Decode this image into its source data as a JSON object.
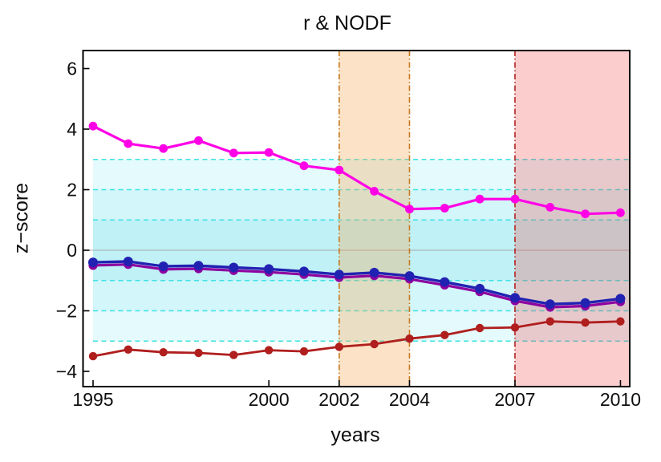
{
  "title": "r & NODF",
  "axes": {
    "ylabel": "z−score",
    "xlabel": "years",
    "y_ticks": [
      {
        "value": 6,
        "label": "6"
      },
      {
        "value": 4,
        "label": "4"
      },
      {
        "value": 2,
        "label": "2"
      },
      {
        "value": 0,
        "label": "0"
      },
      {
        "value": -2,
        "label": "−2"
      },
      {
        "value": -4,
        "label": "−4"
      }
    ],
    "x_ticks": [
      {
        "value": 1995,
        "label": "1995"
      },
      {
        "value": 2000,
        "label": "2000"
      },
      {
        "value": 2002,
        "label": "2002"
      },
      {
        "value": 2004,
        "label": "2004"
      },
      {
        "value": 2007,
        "label": "2007"
      },
      {
        "value": 2010,
        "label": "2010"
      }
    ],
    "x_range": [
      1994.7,
      2010.27
    ],
    "y_range": [
      -4.5,
      6.6
    ]
  },
  "chart_data": {
    "type": "line",
    "title": "r & NODF",
    "xlabel": "years",
    "ylabel": "z-score",
    "grid": false,
    "legend": "none",
    "x": [
      1995,
      1996,
      1997,
      1998,
      1999,
      2000,
      2001,
      2002,
      2003,
      2004,
      2005,
      2006,
      2007,
      2008,
      2009,
      2010
    ],
    "series": [
      {
        "name": "magenta-line",
        "color": "#FF00E6",
        "width": 3.2,
        "r": 5.4,
        "values": [
          4.1,
          3.52,
          3.36,
          3.62,
          3.21,
          3.23,
          2.79,
          2.65,
          1.95,
          1.36,
          1.39,
          1.69,
          1.69,
          1.42,
          1.2,
          1.24
        ]
      },
      {
        "name": "purple-line",
        "color": "#8E00A0",
        "width": 3.2,
        "r": 5.6,
        "values": [
          -0.5,
          -0.47,
          -0.63,
          -0.61,
          -0.67,
          -0.72,
          -0.8,
          -0.9,
          -0.84,
          -0.95,
          -1.15,
          -1.37,
          -1.67,
          -1.88,
          -1.84,
          -1.7
        ]
      },
      {
        "name": "blue-line",
        "color": "#2222B2",
        "width": 3.4,
        "r": 6.0,
        "values": [
          -0.4,
          -0.37,
          -0.53,
          -0.51,
          -0.57,
          -0.62,
          -0.7,
          -0.8,
          -0.74,
          -0.85,
          -1.05,
          -1.27,
          -1.57,
          -1.78,
          -1.74,
          -1.6
        ]
      },
      {
        "name": "dark-red-line",
        "color": "#B01E1E",
        "width": 2.8,
        "r": 5.2,
        "values": [
          -3.5,
          -3.28,
          -3.37,
          -3.39,
          -3.46,
          -3.3,
          -3.34,
          -3.19,
          -3.1,
          -2.92,
          -2.8,
          -2.57,
          -2.55,
          -2.35,
          -2.39,
          -2.35
        ]
      }
    ],
    "cyan_bands": [
      {
        "range": [
          -3,
          3
        ],
        "color": "#E4FAFC"
      },
      {
        "range": [
          -2,
          2
        ],
        "color": "#D2F6F9"
      },
      {
        "range": [
          -1,
          1
        ],
        "color": "#BFF1F6"
      }
    ],
    "dashed_lines_y": [
      3,
      2,
      1,
      -1,
      -2,
      -3
    ],
    "zero_line_y": 0,
    "vertical_bands": [
      {
        "from": 2002,
        "to": 2004,
        "fill": "rgba(246,166,82,0.33)",
        "border_color": "#C8781E",
        "border_at": [
          2002,
          2004
        ]
      },
      {
        "from": 2007,
        "to": null,
        "fill": "rgba(240,70,70,0.27)",
        "border_color": "#B42222",
        "border_at": [
          2007
        ]
      }
    ],
    "colors": {
      "frame": "#000000",
      "zero_line": "#A9A9A9",
      "dashed_line": "#3FE3E3"
    }
  }
}
